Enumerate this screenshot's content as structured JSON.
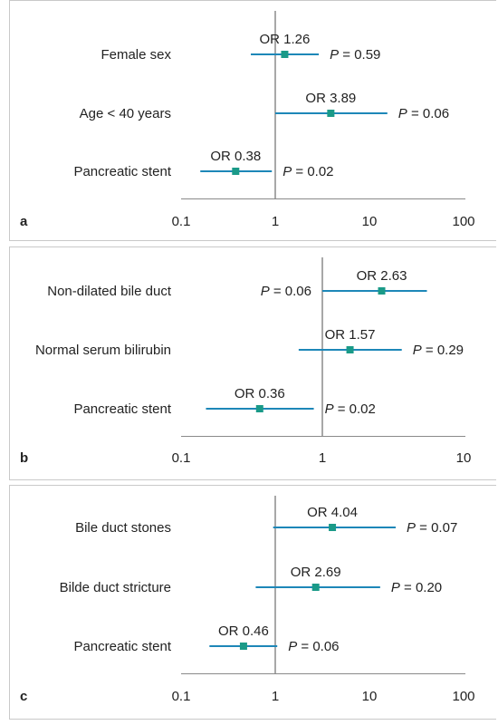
{
  "colors": {
    "background": "#ffffff",
    "panel_border": "#c9c9c9",
    "reference_line": "#a8a8a8",
    "axis": "#8a8a8a",
    "ci_line": "#1d87b8",
    "point": "#1a9a88",
    "text": "#222222"
  },
  "chart_data": [
    {
      "type": "forest",
      "panel_label": "a",
      "x_scale": "log",
      "xlim": [
        0.1,
        100
      ],
      "ticks": [
        "0.1",
        "1",
        "10",
        "100"
      ],
      "reference_value": 1,
      "rows": [
        {
          "label": "Female sex",
          "or": 1.26,
          "ci_low": 0.55,
          "ci_high": 2.9,
          "or_label": "OR 1.26",
          "p_prefix": "P",
          "p_suffix": " = 0.59",
          "p_side": "right"
        },
        {
          "label": "Age < 40 years",
          "or": 3.89,
          "ci_low": 1.0,
          "ci_high": 15.5,
          "or_label": "OR 3.89",
          "p_prefix": "P",
          "p_suffix": " = 0.06",
          "p_side": "right"
        },
        {
          "label": "Pancreatic stent",
          "or": 0.38,
          "ci_low": 0.16,
          "ci_high": 0.92,
          "or_label": "OR 0.38",
          "p_prefix": "P",
          "p_suffix": " = 0.02",
          "p_side": "right"
        }
      ]
    },
    {
      "type": "forest",
      "panel_label": "b",
      "x_scale": "log",
      "xlim": [
        0.1,
        10
      ],
      "ticks": [
        "0.1",
        "1",
        "10"
      ],
      "reference_value": 1,
      "rows": [
        {
          "label": "Non-dilated bile duct",
          "or": 2.63,
          "ci_low": 1.0,
          "ci_high": 5.5,
          "or_label": "OR 2.63",
          "p_prefix": "P",
          "p_suffix": " = 0.06",
          "p_side": "left"
        },
        {
          "label": "Normal serum bilirubin",
          "or": 1.57,
          "ci_low": 0.68,
          "ci_high": 3.65,
          "or_label": "OR 1.57",
          "p_prefix": "P",
          "p_suffix": " = 0.29",
          "p_side": "right"
        },
        {
          "label": "Pancreatic stent",
          "or": 0.36,
          "ci_low": 0.15,
          "ci_high": 0.87,
          "or_label": "OR 0.36",
          "p_prefix": "P",
          "p_suffix": " = 0.02",
          "p_side": "right"
        }
      ]
    },
    {
      "type": "forest",
      "panel_label": "c",
      "x_scale": "log",
      "xlim": [
        0.1,
        100
      ],
      "ticks": [
        "0.1",
        "1",
        "10",
        "100"
      ],
      "reference_value": 1,
      "rows": [
        {
          "label": "Bile duct stones",
          "or": 4.04,
          "ci_low": 0.95,
          "ci_high": 19.0,
          "or_label": "OR 4.04",
          "p_prefix": "P",
          "p_suffix": " = 0.07",
          "p_side": "right"
        },
        {
          "label": "Bilde duct stricture",
          "or": 2.69,
          "ci_low": 0.62,
          "ci_high": 13.0,
          "or_label": "OR 2.69",
          "p_prefix": "P",
          "p_suffix": " = 0.20",
          "p_side": "right"
        },
        {
          "label": "Pancreatic stent",
          "or": 0.46,
          "ci_low": 0.2,
          "ci_high": 1.05,
          "or_label": "OR 0.46",
          "p_prefix": "P",
          "p_suffix": " = 0.06",
          "p_side": "right"
        }
      ]
    }
  ]
}
